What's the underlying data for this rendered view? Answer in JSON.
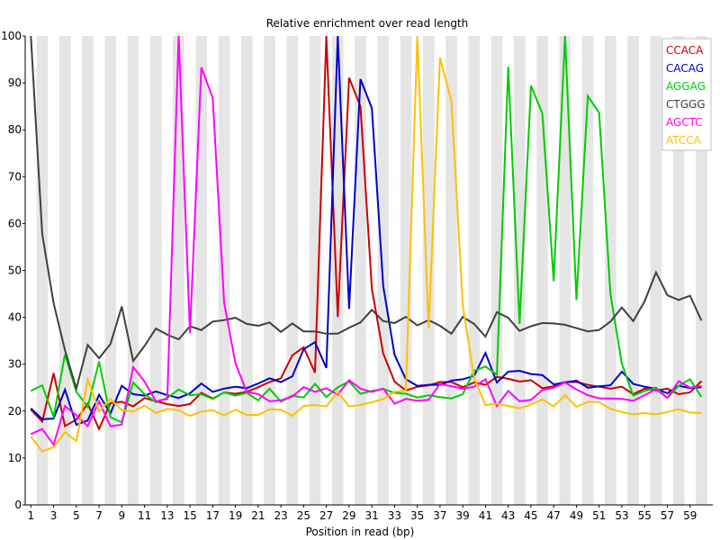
{
  "chart_data": {
    "type": "line",
    "title": "Relative enrichment over read length",
    "xlabel": "Position in read (bp)",
    "ylabel": "",
    "ylim": [
      0,
      100
    ],
    "y_ticks": [
      0,
      10,
      20,
      30,
      40,
      50,
      60,
      70,
      80,
      90,
      100
    ],
    "x_tick_labels": [
      "1",
      "3",
      "5",
      "7",
      "9",
      "11",
      "13",
      "15",
      "17",
      "19",
      "21",
      "23",
      "25",
      "27",
      "29",
      "31",
      "33",
      "35",
      "37",
      "39",
      "41",
      "43",
      "45",
      "47",
      "49",
      "51",
      "53",
      "55",
      "57",
      "59"
    ],
    "grid": "alternating vertical bands",
    "legend_position": "top-right",
    "x": [
      1,
      2,
      3,
      4,
      5,
      6,
      7,
      8,
      9,
      10,
      11,
      12,
      13,
      14,
      15,
      16,
      17,
      18,
      19,
      20,
      21,
      22,
      23,
      24,
      25,
      26,
      27,
      28,
      29,
      30,
      31,
      32,
      33,
      34,
      35,
      36,
      37,
      38,
      39,
      40,
      41,
      42,
      43,
      44,
      45,
      46,
      47,
      48,
      49,
      50,
      51,
      52,
      53,
      54,
      55,
      56,
      57,
      58,
      59,
      60
    ],
    "series": [
      {
        "name": "CCACA",
        "color": "#cc0000",
        "values": [
          20.3,
          17.8,
          28.1,
          16.8,
          18.2,
          21.6,
          16.2,
          21.7,
          22.0,
          21.0,
          22.8,
          22.1,
          21.5,
          21.1,
          21.5,
          23.9,
          22.7,
          24.0,
          23.7,
          24.1,
          25.1,
          26.2,
          27.0,
          31.9,
          33.6,
          28.2,
          100,
          40.1,
          91.1,
          85.0,
          46.1,
          32.3,
          26.3,
          24.4,
          25.2,
          25.5,
          26.2,
          26.2,
          25.1,
          26.1,
          25.6,
          27.3,
          26.9,
          26.3,
          26.6,
          24.9,
          25.3,
          26.2,
          26.2,
          25.6,
          25.2,
          24.8,
          25.2,
          23.6,
          24.8,
          24.4,
          24.8,
          23.6,
          24.0,
          26.4
        ]
      },
      {
        "name": "CACAG",
        "color": "#0000cc",
        "values": [
          20.6,
          18.3,
          18.4,
          24.6,
          17.1,
          18.0,
          23.5,
          19.5,
          25.4,
          23.6,
          23.3,
          24.2,
          23.4,
          22.8,
          23.8,
          25.9,
          24.1,
          24.8,
          25.2,
          24.9,
          25.9,
          27.0,
          26.2,
          27.4,
          33.2,
          34.7,
          29.2,
          100,
          41.8,
          90.8,
          84.6,
          46.7,
          32.0,
          26.8,
          25.4,
          25.6,
          25.6,
          26.5,
          26.8,
          27.5,
          32.4,
          26.1,
          28.4,
          28.6,
          27.9,
          27.7,
          25.7,
          26.1,
          26.5,
          25.0,
          25.3,
          25.5,
          28.4,
          25.8,
          25.2,
          24.8,
          23.8,
          25.4,
          24.9,
          25.1
        ]
      },
      {
        "name": "AGGAG",
        "color": "#00cc00",
        "values": [
          24.3,
          25.5,
          18.8,
          32.1,
          24.1,
          20.9,
          30.6,
          18.7,
          17.6,
          26.1,
          23.6,
          21.9,
          22.8,
          24.6,
          23.4,
          23.6,
          22.6,
          24.0,
          23.3,
          23.9,
          22.3,
          24.8,
          22.0,
          23.3,
          22.9,
          25.8,
          23.0,
          25.1,
          26.3,
          23.7,
          24.3,
          24.7,
          23.9,
          23.7,
          22.9,
          23.4,
          23.0,
          22.7,
          23.6,
          28.6,
          29.5,
          27.8,
          93.4,
          38.6,
          89.4,
          83.5,
          47.7,
          100,
          43.7,
          87.2,
          83.6,
          44.9,
          30.1,
          23.3,
          24.3,
          25.0,
          22.8,
          25.4,
          26.8,
          23.0
        ]
      },
      {
        "name": "CTGGG",
        "color": "#404040",
        "values": [
          100,
          57.8,
          43.0,
          33.0,
          24.8,
          34.1,
          31.3,
          34.3,
          42.3,
          30.7,
          33.9,
          37.6,
          36.3,
          35.3,
          38.1,
          37.3,
          39.1,
          39.4,
          39.9,
          38.6,
          38.2,
          38.9,
          36.9,
          38.7,
          37.0,
          37.0,
          36.5,
          36.5,
          37.8,
          38.9,
          41.6,
          39.2,
          38.8,
          40.1,
          38.3,
          39.4,
          38.2,
          36.5,
          40.1,
          38.6,
          35.9,
          41.1,
          39.9,
          37.1,
          38.1,
          38.8,
          38.7,
          38.4,
          37.7,
          37.0,
          37.3,
          39.1,
          42.1,
          39.2,
          43.4,
          49.6,
          44.7,
          43.7,
          44.6,
          39.3
        ]
      },
      {
        "name": "AGCTC",
        "color": "#ff00ff",
        "values": [
          15.1,
          16.2,
          12.8,
          21.1,
          19.1,
          16.8,
          22.1,
          16.8,
          17.1,
          29.4,
          26.3,
          22.1,
          22.6,
          100,
          36.6,
          93.3,
          86.8,
          43.2,
          30.2,
          24.1,
          23.6,
          22.1,
          22.3,
          23.1,
          25.1,
          24.1,
          24.9,
          23.5,
          26.6,
          24.8,
          24.1,
          24.8,
          21.6,
          22.6,
          22.2,
          22.4,
          25.8,
          25.3,
          24.8,
          25.2,
          26.8,
          21.1,
          24.3,
          22.1,
          22.4,
          24.5,
          25.0,
          26.1,
          24.6,
          23.4,
          22.7,
          22.7,
          22.6,
          22.2,
          23.4,
          24.7,
          22.8,
          26.4,
          25.0,
          25.4
        ]
      },
      {
        "name": "ATCCA",
        "color": "#ffc000",
        "values": [
          14.6,
          11.4,
          12.3,
          15.5,
          13.6,
          26.7,
          20.0,
          22.6,
          20.2,
          19.9,
          21.2,
          19.6,
          20.5,
          20.2,
          19.0,
          19.9,
          20.2,
          19.1,
          20.3,
          19.2,
          19.2,
          20.4,
          20.3,
          19.0,
          21.1,
          21.3,
          21.0,
          24.1,
          21.0,
          21.3,
          21.9,
          22.6,
          24.1,
          24.4,
          100,
          37.6,
          95.4,
          86.1,
          42.6,
          27.1,
          21.3,
          21.6,
          21.1,
          20.6,
          21.4,
          22.5,
          21.0,
          23.4,
          20.9,
          22.0,
          21.9,
          20.5,
          19.8,
          19.3,
          19.6,
          19.3,
          19.8,
          20.4,
          19.7,
          19.6
        ]
      }
    ]
  }
}
